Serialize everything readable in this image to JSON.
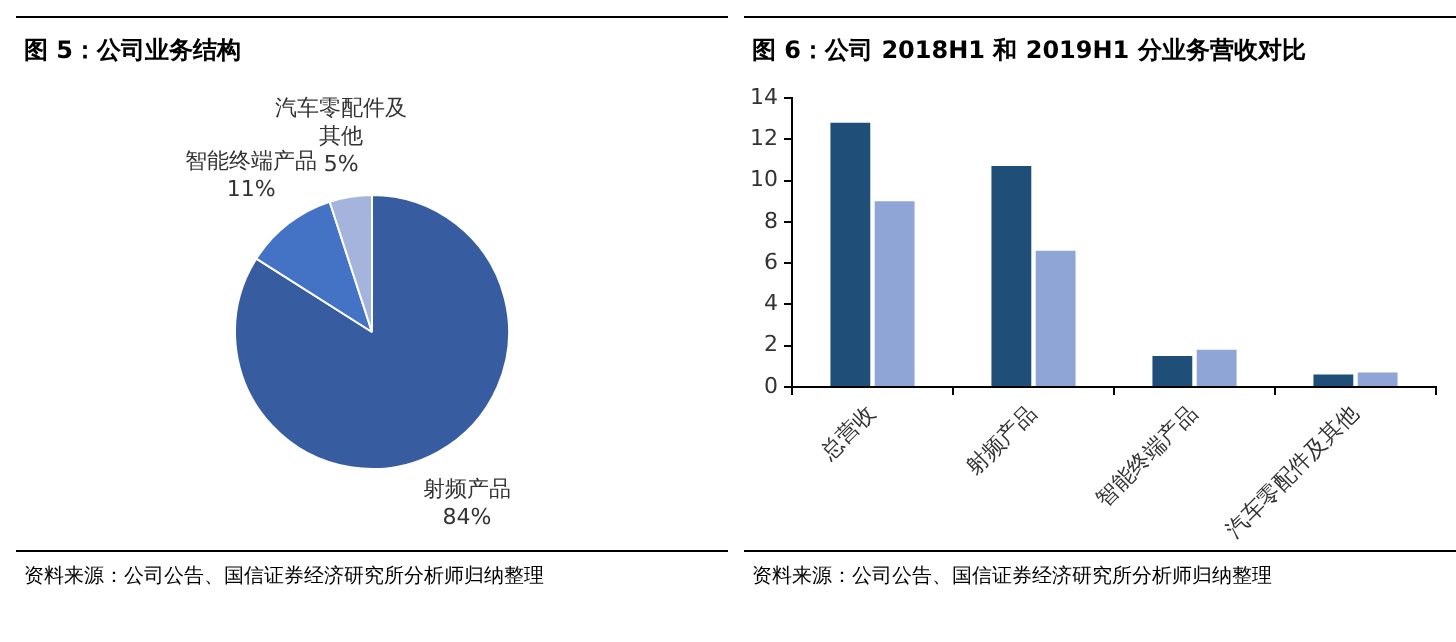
{
  "chart_data": [
    {
      "type": "pie",
      "title": "图 5：公司业务结构",
      "categories": [
        "射频产品",
        "智能终端产品",
        "汽车零配件及其他"
      ],
      "values": [
        84,
        11,
        5
      ],
      "value_labels": [
        "84%",
        "11%",
        "5%"
      ],
      "colors": [
        "#375c9f",
        "#4472c4",
        "#a5b4dc"
      ],
      "legend": false,
      "annotations": [
        "资料来源：公司公告、国信证券经济研究所分析师归纳整理"
      ]
    },
    {
      "type": "bar",
      "title": "图 6：公司 2018H1 和 2019H1 分业务营收对比",
      "categories": [
        "总营收",
        "射频产品",
        "智能终端产品",
        "汽车零配件及其他"
      ],
      "series": [
        {
          "color": "#1f4e79",
          "values": [
            12.8,
            10.7,
            1.5,
            0.6
          ]
        },
        {
          "color": "#8fa5d6",
          "values": [
            9.0,
            6.6,
            1.8,
            0.7
          ]
        }
      ],
      "ylim": [
        0,
        14
      ],
      "yticks": [
        0,
        2,
        4,
        6,
        8,
        10,
        12,
        14
      ],
      "grid": false,
      "legend": false,
      "annotations": [
        "资料来源：公司公告、国信证券经济研究所分析师归纳整理"
      ]
    }
  ]
}
